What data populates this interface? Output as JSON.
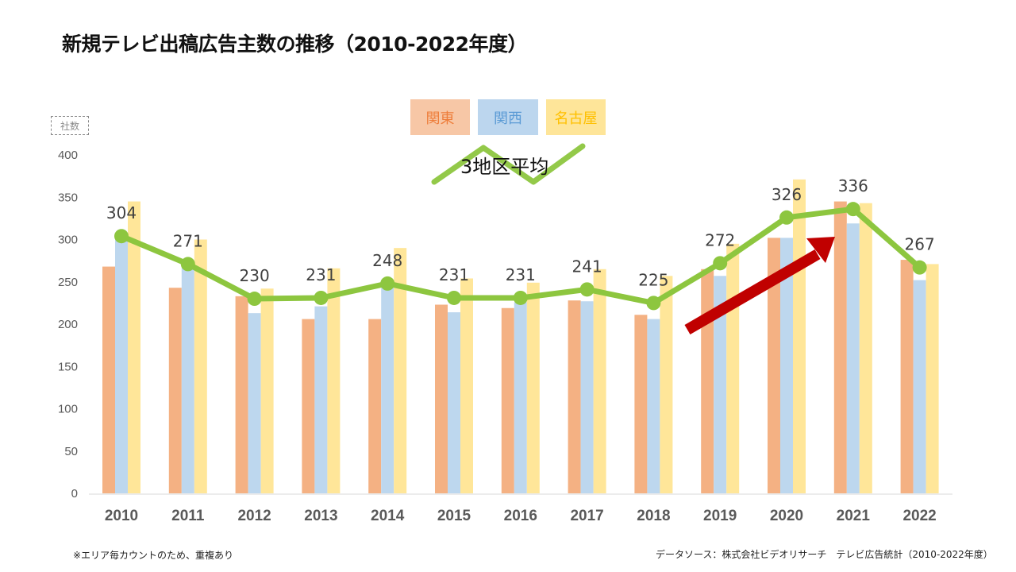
{
  "title": "新規テレビ出稿広告主数の推移（2010-2022年度）",
  "unit_label": "社数",
  "footnote": "※エリア毎カウントのため、重複あり",
  "source": "データソース：株式会社ビデオリサーチ　テレビ広告統計（2010-2022年度）",
  "colors": {
    "kanto": "#f4b183",
    "kansai": "#bdd7ee",
    "nagoya": "#ffe699",
    "average": "#8dc63f",
    "trend_arrow": "#c00000"
  },
  "chart_data": {
    "type": "bar",
    "title": "新規テレビ出稿広告主数の推移（2010-2022年度）",
    "xlabel": "",
    "ylabel": "社数",
    "ylim": [
      0,
      400
    ],
    "yticks": [
      0,
      50,
      100,
      150,
      200,
      250,
      300,
      350,
      400
    ],
    "grid": false,
    "legend_position": "top-center",
    "categories": [
      "2010",
      "2011",
      "2012",
      "2013",
      "2014",
      "2015",
      "2016",
      "2017",
      "2018",
      "2019",
      "2020",
      "2021",
      "2022"
    ],
    "series": [
      {
        "name": "関東",
        "type": "bar",
        "values": [
          268,
          243,
          233,
          206,
          206,
          223,
          219,
          228,
          211,
          265,
          302,
          345,
          276
        ]
      },
      {
        "name": "関西",
        "type": "bar",
        "values": [
          300,
          270,
          213,
          221,
          248,
          214,
          226,
          227,
          206,
          257,
          302,
          319,
          252
        ]
      },
      {
        "name": "名古屋",
        "type": "bar",
        "values": [
          345,
          300,
          242,
          266,
          290,
          254,
          249,
          265,
          257,
          295,
          371,
          343,
          271
        ]
      },
      {
        "name": "3地区平均",
        "type": "line",
        "values": [
          304,
          271,
          230,
          231,
          248,
          231,
          231,
          241,
          225,
          272,
          326,
          336,
          267
        ],
        "data_labels": [
          "304",
          "271",
          "230",
          "231",
          "248",
          "231",
          "231",
          "241",
          "225",
          "272",
          "326",
          "336",
          "267"
        ]
      }
    ],
    "annotations": [
      {
        "type": "arrow",
        "from": "2019",
        "to": "2021",
        "meaning": "upward trend"
      }
    ]
  },
  "legend": {
    "kanto": "関東",
    "kansai": "関西",
    "nagoya": "名古屋",
    "average": "3地区平均"
  }
}
